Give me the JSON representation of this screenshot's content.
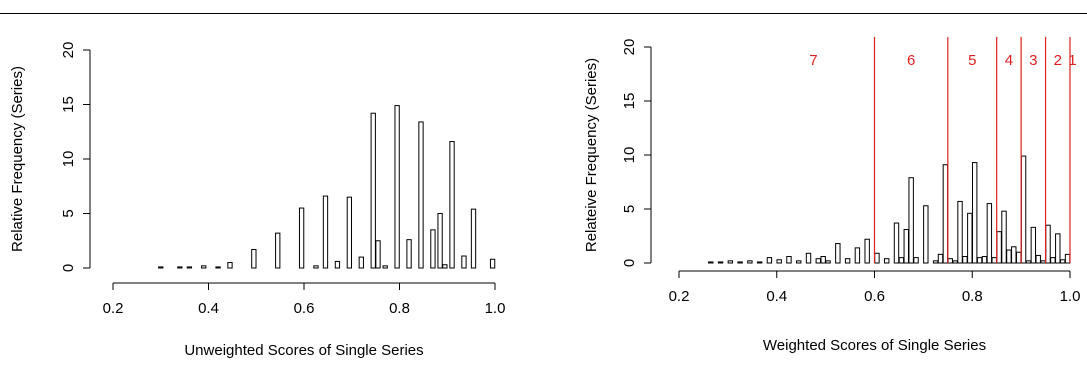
{
  "colors": {
    "bar_fill": "#ffffff",
    "bar_stroke": "#000000",
    "threshold": "#e02020",
    "axis": "#000000"
  },
  "chart_data": [
    {
      "type": "bar",
      "xlabel": "Unweighted Scores of Single Series",
      "ylabel": "Relative Frequency (Series)",
      "xlim": [
        0.2,
        1.0
      ],
      "ylim": [
        0,
        20
      ],
      "xticks": [
        "0.2",
        "0.4",
        "0.6",
        "0.8",
        "1.0"
      ],
      "yticks": [
        "0",
        "5",
        "10",
        "15",
        "20"
      ],
      "bar_width": 0.009,
      "x": [
        0.3,
        0.34,
        0.36,
        0.39,
        0.42,
        0.445,
        0.495,
        0.545,
        0.595,
        0.625,
        0.645,
        0.67,
        0.695,
        0.72,
        0.745,
        0.755,
        0.77,
        0.795,
        0.82,
        0.845,
        0.87,
        0.885,
        0.895,
        0.91,
        0.935,
        0.955,
        0.995
      ],
      "values": [
        0.1,
        0.1,
        0.1,
        0.2,
        0.1,
        0.5,
        1.7,
        3.2,
        5.5,
        0.2,
        6.6,
        0.6,
        6.5,
        1.0,
        14.2,
        2.5,
        0.2,
        14.9,
        2.6,
        13.4,
        3.5,
        5.0,
        0.3,
        11.6,
        1.1,
        5.4,
        0.8
      ]
    },
    {
      "type": "bar",
      "xlabel": "Weighted Scores of Single Series",
      "ylabel": "Relateive Frequency (Series)",
      "xlim": [
        0.2,
        1.0
      ],
      "ylim": [
        0,
        20
      ],
      "xticks": [
        "0.2",
        "0.4",
        "0.6",
        "0.8",
        "1.0"
      ],
      "yticks": [
        "0",
        "5",
        "10",
        "15",
        "20"
      ],
      "bar_width": 0.009,
      "x": [
        0.265,
        0.285,
        0.305,
        0.325,
        0.345,
        0.365,
        0.385,
        0.405,
        0.425,
        0.445,
        0.465,
        0.485,
        0.495,
        0.505,
        0.525,
        0.545,
        0.565,
        0.585,
        0.605,
        0.625,
        0.645,
        0.655,
        0.665,
        0.675,
        0.685,
        0.705,
        0.725,
        0.735,
        0.745,
        0.755,
        0.765,
        0.775,
        0.785,
        0.795,
        0.805,
        0.815,
        0.825,
        0.835,
        0.845,
        0.855,
        0.865,
        0.875,
        0.885,
        0.895,
        0.905,
        0.915,
        0.925,
        0.935,
        0.945,
        0.955,
        0.965,
        0.975,
        0.985,
        0.995
      ],
      "values": [
        0.1,
        0.1,
        0.2,
        0.1,
        0.2,
        0.1,
        0.5,
        0.3,
        0.6,
        0.2,
        0.9,
        0.4,
        0.6,
        0.2,
        1.8,
        0.4,
        1.4,
        2.2,
        0.9,
        0.4,
        3.7,
        0.5,
        3.1,
        7.9,
        0.5,
        5.3,
        0.2,
        0.8,
        9.1,
        0.4,
        0.2,
        5.7,
        0.6,
        4.6,
        9.3,
        0.5,
        0.6,
        5.5,
        0.5,
        2.9,
        4.8,
        1.2,
        1.5,
        1.0,
        9.9,
        0.2,
        3.3,
        0.7,
        0.2,
        3.5,
        0.5,
        2.7,
        0.3,
        0.8
      ],
      "thresholds": [
        0.6,
        0.75,
        0.85,
        0.9,
        0.95,
        1.0
      ],
      "zones": [
        {
          "label": "7",
          "x": 0.475
        },
        {
          "label": "6",
          "x": 0.675
        },
        {
          "label": "5",
          "x": 0.8
        },
        {
          "label": "4",
          "x": 0.875
        },
        {
          "label": "3",
          "x": 0.925
        },
        {
          "label": "2",
          "x": 0.975
        },
        {
          "label": "1",
          "x": 1.005
        }
      ]
    }
  ]
}
